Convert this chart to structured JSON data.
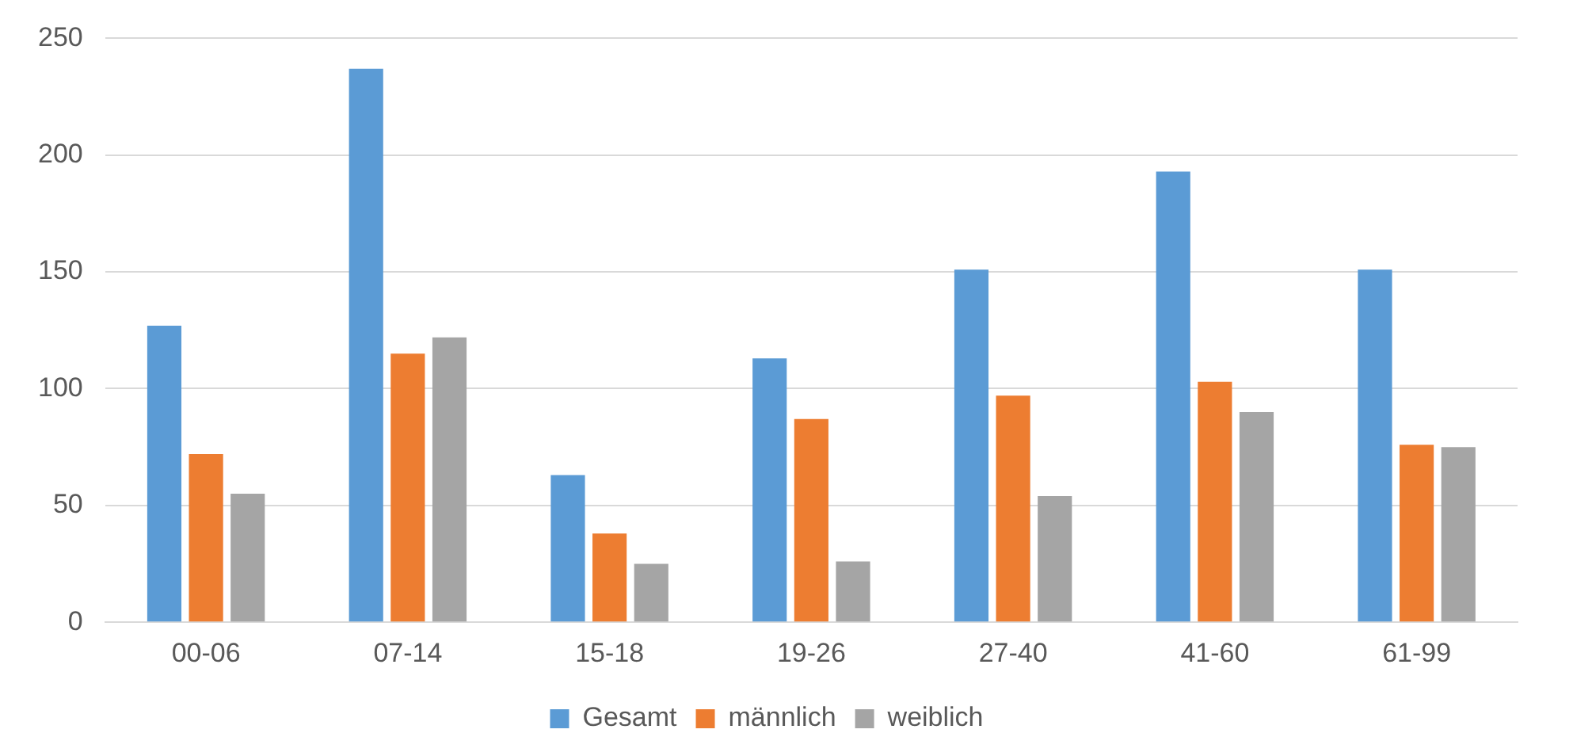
{
  "chart_data": {
    "type": "bar",
    "categories": [
      "00-06",
      "07-14",
      "15-18",
      "19-26",
      "27-40",
      "41-60",
      "61-99"
    ],
    "series": [
      {
        "name": "Gesamt",
        "color": "#5b9bd5",
        "values": [
          127,
          237,
          63,
          113,
          151,
          193,
          151
        ]
      },
      {
        "name": "männlich",
        "color": "#ed7d31",
        "values": [
          72,
          115,
          38,
          87,
          97,
          103,
          76
        ]
      },
      {
        "name": "weiblich",
        "color": "#a5a5a5",
        "values": [
          55,
          122,
          25,
          26,
          54,
          90,
          75
        ]
      }
    ],
    "ylim": [
      0,
      250
    ],
    "yticks": [
      0,
      50,
      100,
      150,
      200,
      250
    ],
    "grid": "y",
    "legend": "bottom"
  }
}
